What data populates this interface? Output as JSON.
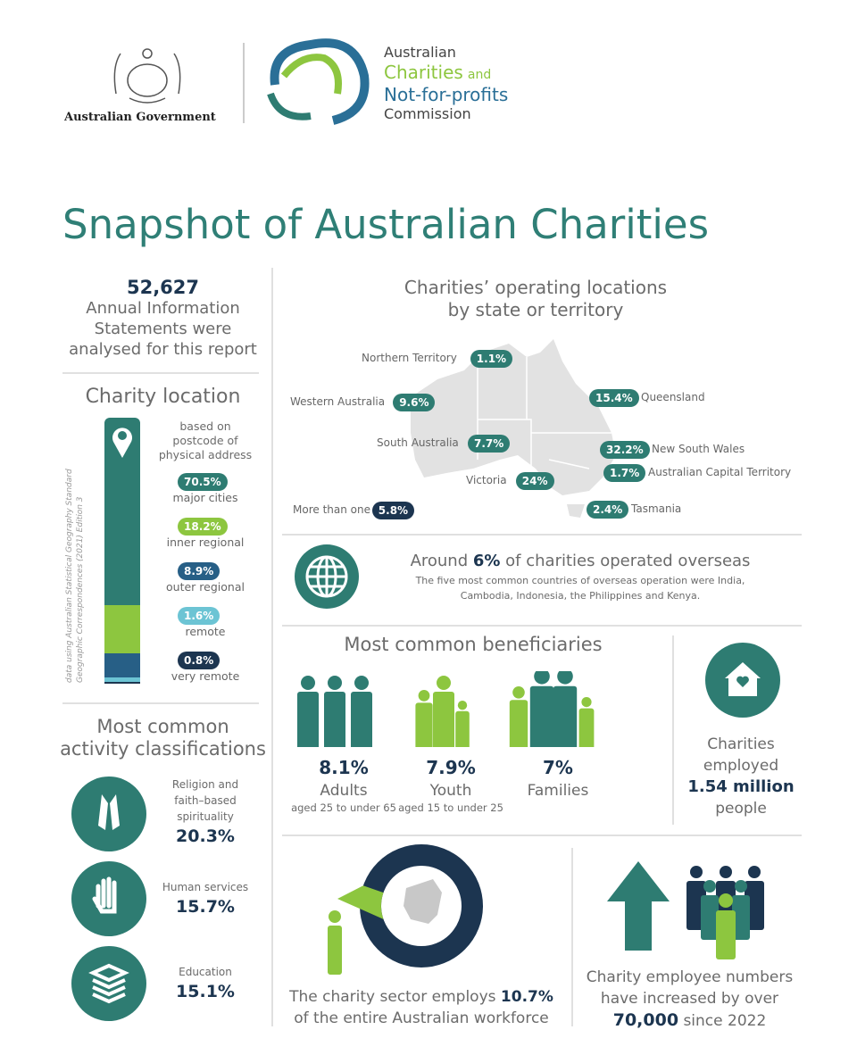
{
  "header": {
    "gov": "Australian Government",
    "acnc": [
      "Australian",
      "Charities",
      "and",
      "Not-for-profits",
      "Commission"
    ]
  },
  "title": "Snapshot of Australian Charities",
  "ais": {
    "count": "52,627",
    "text": [
      "Annual Information",
      "Statements were",
      "analysed for this report"
    ]
  },
  "location": {
    "title": "Charity location",
    "note": [
      "based on",
      "postcode of",
      "physical address"
    ],
    "source": [
      "data using Australian Statistical Geography Standard",
      "Geographic Correspondences (2021) Edition 3"
    ],
    "segments": [
      {
        "value": 70.5,
        "pill": "70.5%",
        "label": "major cities",
        "color": "#2e7c72"
      },
      {
        "value": 18.2,
        "pill": "18.2%",
        "label": "inner regional",
        "color": "#8dc63f"
      },
      {
        "value": 8.9,
        "pill": "8.9%",
        "label": "outer regional",
        "color": "#275f86"
      },
      {
        "value": 1.6,
        "pill": "1.6%",
        "label": "remote",
        "color": "#6cc4d4"
      },
      {
        "value": 0.8,
        "pill": "0.8%",
        "label": "very remote",
        "color": "#1c3550"
      }
    ]
  },
  "states": {
    "title": [
      "Charities’ operating locations",
      "by state or territory"
    ],
    "items": [
      {
        "name": "Northern Territory",
        "pct": "1.1%"
      },
      {
        "name": "Western Australia",
        "pct": "9.6%"
      },
      {
        "name": "South Australia",
        "pct": "7.7%"
      },
      {
        "name": "Victoria",
        "pct": "24%"
      },
      {
        "name": "More than one",
        "pct": "5.8%"
      },
      {
        "name": "Queensland",
        "pct": "15.4%"
      },
      {
        "name": "New South Wales",
        "pct": "32.2%"
      },
      {
        "name": "Australian Capital Territory",
        "pct": "1.7%"
      },
      {
        "name": "Tasmania",
        "pct": "2.4%"
      }
    ]
  },
  "overseas": {
    "pre": "Around",
    "pct": "6%",
    "post": "of charities operated overseas",
    "detail": [
      "The five most common countries of overseas operation were India,",
      "Cambodia, Indonesia, the Philippines and Kenya."
    ]
  },
  "beneficiaries": {
    "title": "Most common beneficiaries",
    "items": [
      {
        "pct": "8.1%",
        "label": "Adults",
        "sub": "aged 25 to under 65"
      },
      {
        "pct": "7.9%",
        "label": "Youth",
        "sub": "aged 15 to under 25"
      },
      {
        "pct": "7%",
        "label": "Families",
        "sub": ""
      }
    ]
  },
  "employed": {
    "l1": "Charities",
    "l2": "employed",
    "value": "1.54 million",
    "l3": "people"
  },
  "activities": {
    "title": [
      "Most common",
      "activity classifications"
    ],
    "items": [
      {
        "label": [
          "Religion and",
          "faith–based",
          "spirituality"
        ],
        "pct": "20.3%",
        "icon": "praying-hands-icon"
      },
      {
        "label": [
          "Human services"
        ],
        "pct": "15.7%",
        "icon": "helping-hand-icon"
      },
      {
        "label": [
          "Education"
        ],
        "pct": "15.1%",
        "icon": "books-icon"
      }
    ]
  },
  "workforce": {
    "value": 10.7,
    "pre": "The charity sector employs",
    "pct": "10.7%",
    "post": "of the entire Australian workforce"
  },
  "growth": {
    "l1": "Charity employee numbers",
    "l2": "have increased by over",
    "value": "70,000",
    "post": "since 2022"
  },
  "colors": {
    "teal": "#2e7c72",
    "green": "#8dc63f",
    "navy": "#1c3550"
  }
}
